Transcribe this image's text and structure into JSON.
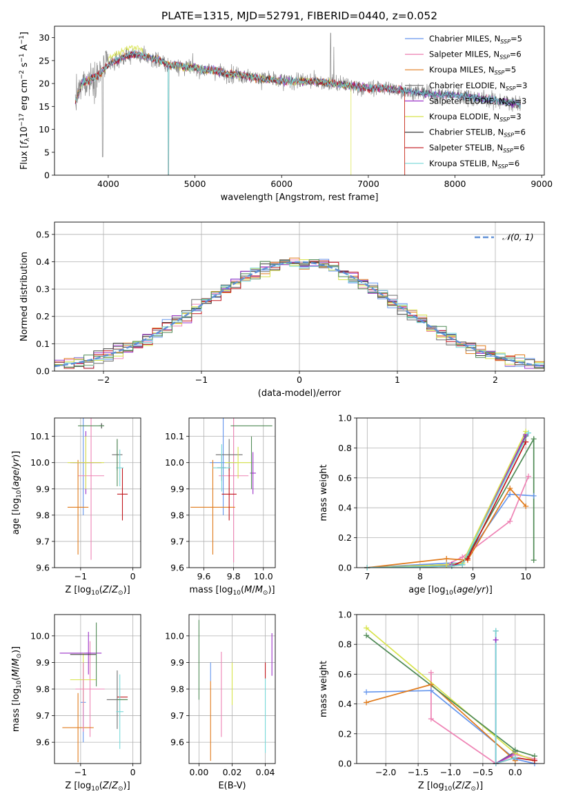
{
  "figure": {
    "title": "PLATE=1315, MJD=52791, FIBERID=0440, z=0.052"
  },
  "colors": {
    "Chabrier MILES": "#6495ed",
    "Salpeter MILES": "#ee82b4",
    "Kroupa MILES": "#e07a1a",
    "Chabrier ELODIE": "#6e6e6e",
    "Salpeter ELODIE": "#9b30c8",
    "Kroupa ELODIE": "#d7e34a",
    "Chabrier STELIB": "#3e3e3e",
    "Salpeter STELIB": "#c0141a",
    "Kroupa STELIB": "#76d8d8",
    "green": "#4f8a55",
    "gaussian": "#5f8fd6"
  },
  "chart_data": [
    {
      "type": "line",
      "id": "spectrum",
      "title": "PLATE=1315, MJD=52791, FIBERID=0440, z=0.052",
      "xlabel": "wavelength [Angstrom, rest frame]",
      "ylabel_parts": [
        "Flux [",
        "f",
        "λ",
        "10",
        "−17",
        " erg cm",
        "−2",
        " s",
        "−1",
        " A",
        "−1",
        "]"
      ],
      "xlim": [
        3380,
        9030
      ],
      "ylim": [
        0,
        32.5
      ],
      "xticks": [
        4000,
        5000,
        6000,
        7000,
        8000,
        9000
      ],
      "yticks": [
        0,
        5,
        10,
        15,
        20,
        25,
        30
      ],
      "legend": "upper right",
      "series": [
        {
          "name": "Chabrier MILES",
          "n_ssp": "5"
        },
        {
          "name": "Salpeter MILES",
          "n_ssp": "6"
        },
        {
          "name": "Kroupa MILES",
          "n_ssp": "5"
        },
        {
          "name": "Chabrier ELODIE",
          "n_ssp": "3"
        },
        {
          "name": "Salpeter ELODIE",
          "n_ssp": "3"
        },
        {
          "name": "Kroupa ELODIE",
          "n_ssp": "3"
        },
        {
          "name": "Chabrier STELIB",
          "n_ssp": "6"
        },
        {
          "name": "Salpeter STELIB",
          "n_ssp": "6"
        },
        {
          "name": "Kroupa STELIB",
          "n_ssp": "6"
        }
      ],
      "continuum": [
        [
          3620,
          16
        ],
        [
          3700,
          20
        ],
        [
          3800,
          21
        ],
        [
          3900,
          22
        ],
        [
          4000,
          24
        ],
        [
          4100,
          25
        ],
        [
          4200,
          26
        ],
        [
          4300,
          26.5
        ],
        [
          4400,
          26
        ],
        [
          4500,
          25.5
        ],
        [
          4600,
          25
        ],
        [
          4700,
          24
        ],
        [
          4800,
          24
        ],
        [
          4900,
          23.5
        ],
        [
          5000,
          23.5
        ],
        [
          5100,
          23
        ],
        [
          5200,
          23
        ],
        [
          5300,
          22.5
        ],
        [
          5400,
          22
        ],
        [
          5500,
          22
        ],
        [
          5600,
          21.5
        ],
        [
          5800,
          21
        ],
        [
          6000,
          20.5
        ],
        [
          6200,
          20.5
        ],
        [
          6400,
          20.5
        ],
        [
          6600,
          20
        ],
        [
          6800,
          19.5
        ],
        [
          7000,
          19
        ],
        [
          7200,
          19
        ],
        [
          7400,
          18.5
        ],
        [
          7600,
          18
        ],
        [
          7800,
          17.5
        ],
        [
          8000,
          17.5
        ],
        [
          8200,
          17
        ],
        [
          8400,
          16.5
        ],
        [
          8600,
          16
        ],
        [
          8760,
          15.5
        ]
      ]
    },
    {
      "type": "step",
      "id": "residuals",
      "xlabel": "(data-model)/error",
      "ylabel": "Normed distribution",
      "xlim": [
        -2.5,
        2.5
      ],
      "ylim": [
        0,
        0.545
      ],
      "xticks": [
        -2,
        -1,
        0,
        1,
        2
      ],
      "yticks": [
        0.0,
        0.1,
        0.2,
        0.3,
        0.4,
        0.5
      ],
      "legend": "upper right",
      "gaussian_label": "𝒩(0, 1)",
      "bin_width": 0.1
    },
    {
      "type": "errorbar",
      "id": "age-vs-Z",
      "xlabel": "Z [log10(Z/Z⊙)]",
      "ylabel": "age [log10(age/yr)]",
      "xlim": [
        -1.5,
        0.15
      ],
      "ylim": [
        9.6,
        10.17
      ],
      "xticks": [
        -1,
        0
      ],
      "yticks": [
        9.6,
        9.7,
        9.8,
        9.9,
        10.0,
        10.1
      ],
      "points": [
        {
          "x": -0.95,
          "xerr": 0.2,
          "y": 10.0,
          "yerr": 0.2,
          "c": "Chabrier MILES"
        },
        {
          "x": -0.8,
          "xerr": 0.25,
          "y": 9.95,
          "yerr": 0.32,
          "c": "Salpeter MILES"
        },
        {
          "x": -1.05,
          "xerr": 0.2,
          "y": 9.83,
          "yerr": 0.18,
          "c": "Kroupa MILES"
        },
        {
          "x": -0.3,
          "xerr": 0.1,
          "y": 10.03,
          "yerr": 0.06,
          "c": "Chabrier ELODIE"
        },
        {
          "x": -0.9,
          "xerr": 0.3,
          "y": 10.0,
          "yerr": 0.12,
          "c": "Salpeter ELODIE"
        },
        {
          "x": -0.9,
          "xerr": 0.35,
          "y": 10.0,
          "yerr": 0.1,
          "c": "Kroupa ELODIE"
        },
        {
          "x": -0.6,
          "xerr": 0.05,
          "y": 10.14,
          "yerr": 0.01,
          "c": "Chabrier STELIB"
        },
        {
          "x": -0.2,
          "xerr": 0.1,
          "y": 9.88,
          "yerr": 0.1,
          "c": "Salpeter STELIB"
        },
        {
          "x": -0.25,
          "xerr": 0.07,
          "y": 9.98,
          "yerr": 0.07,
          "c": "Kroupa STELIB"
        },
        {
          "x": -0.8,
          "xerr": 0.25,
          "y": 10.14,
          "yerr": 0.0,
          "c": "green"
        },
        {
          "x": -0.3,
          "xerr": 0.0,
          "y": 10.0,
          "yerr": 0.09,
          "c": "green"
        }
      ]
    },
    {
      "type": "errorbar",
      "id": "age-vs-mass",
      "xlabel": "mass [log10(M/M⊙)]",
      "ylabel": "",
      "xlim": [
        9.5,
        10.08
      ],
      "ylim": [
        9.6,
        10.17
      ],
      "xticks": [
        9.6,
        9.8,
        10.0
      ],
      "yticks": [
        9.6,
        9.7,
        9.8,
        9.9,
        10.0,
        10.1
      ],
      "points": [
        {
          "x": 9.73,
          "xerr": 0.09,
          "y": 10.0,
          "yerr": 0.2,
          "c": "Chabrier MILES"
        },
        {
          "x": 9.8,
          "xerr": 0.1,
          "y": 9.95,
          "yerr": 0.33,
          "c": "Salpeter MILES"
        },
        {
          "x": 9.66,
          "xerr": 0.15,
          "y": 9.83,
          "yerr": 0.18,
          "c": "Kroupa MILES"
        },
        {
          "x": 9.77,
          "xerr": 0.09,
          "y": 10.03,
          "yerr": 0.06,
          "c": "Chabrier ELODIE"
        },
        {
          "x": 9.93,
          "xerr": 0.02,
          "y": 9.96,
          "yerr": 0.08,
          "c": "Salpeter ELODIE"
        },
        {
          "x": 9.83,
          "xerr": 0.09,
          "y": 10.0,
          "yerr": 0.06,
          "c": "Kroupa ELODIE"
        },
        {
          "x": 9.72,
          "xerr": 0.03,
          "y": 9.98,
          "yerr": 0.05,
          "c": "Chabrier STELIB"
        },
        {
          "x": 9.77,
          "xerr": 0.05,
          "y": 9.88,
          "yerr": 0.1,
          "c": "Salpeter STELIB"
        },
        {
          "x": 9.72,
          "xerr": 0.06,
          "y": 9.98,
          "yerr": 0.09,
          "c": "Kroupa STELIB"
        },
        {
          "x": 9.92,
          "xerr": 0.14,
          "y": 10.14,
          "yerr": 0.0,
          "c": "green"
        },
        {
          "x": 9.92,
          "xerr": 0.0,
          "y": 10.0,
          "yerr": 0.1,
          "c": "green"
        }
      ]
    },
    {
      "type": "line",
      "id": "mass-weight-vs-age",
      "xlabel": "age [log10(age/yr)]",
      "ylabel": "mass weight",
      "xlim": [
        6.8,
        10.35
      ],
      "ylim": [
        0,
        1.0
      ],
      "xticks": [
        7,
        8,
        9,
        10
      ],
      "yticks": [
        0.0,
        0.2,
        0.4,
        0.6,
        0.8,
        1.0
      ],
      "series": [
        {
          "c": "Chabrier MILES",
          "x": [
            7.0,
            8.5,
            8.8,
            9.7,
            10.15
          ],
          "y": [
            0.0,
            0.03,
            0.03,
            0.49,
            0.48
          ]
        },
        {
          "c": "Salpeter MILES",
          "x": [
            7.0,
            8.5,
            8.8,
            9.7,
            10.05
          ],
          "y": [
            0.0,
            0.02,
            0.07,
            0.31,
            0.61
          ]
        },
        {
          "c": "Kroupa MILES",
          "x": [
            7.0,
            8.5,
            8.9,
            9.7,
            10.0
          ],
          "y": [
            0.0,
            0.06,
            0.05,
            0.53,
            0.41
          ]
        },
        {
          "c": "Chabrier ELODIE",
          "x": [
            7.0,
            8.6,
            8.8,
            10.0
          ],
          "y": [
            0.0,
            0.02,
            0.02,
            0.88
          ]
        },
        {
          "c": "Salpeter ELODIE",
          "x": [
            7.0,
            8.6,
            8.8,
            10.0
          ],
          "y": [
            0.0,
            0.02,
            0.02,
            0.89
          ]
        },
        {
          "c": "Kroupa ELODIE",
          "x": [
            7.0,
            8.5,
            8.8,
            10.0
          ],
          "y": [
            0.0,
            0.02,
            0.03,
            0.91
          ]
        },
        {
          "c": "green",
          "x": [
            7.0,
            8.6,
            8.8,
            10.15,
            10.15
          ],
          "y": [
            0.0,
            0.01,
            0.02,
            0.86,
            0.05
          ]
        },
        {
          "c": "Salpeter STELIB",
          "x": [
            7.0,
            8.6,
            8.9,
            10.0
          ],
          "y": [
            0.0,
            0.01,
            0.06,
            0.84
          ]
        },
        {
          "c": "Kroupa STELIB",
          "x": [
            7.0,
            8.6,
            8.8,
            10.05
          ],
          "y": [
            0.0,
            0.01,
            0.02,
            0.9
          ]
        }
      ]
    },
    {
      "type": "errorbar",
      "id": "mass-vs-Z",
      "xlabel": "Z [log10(Z/Z⊙)]",
      "ylabel": "mass [log10(M/M⊙)]",
      "xlim": [
        -1.5,
        0.15
      ],
      "ylim": [
        9.52,
        10.08
      ],
      "xticks": [
        -1,
        0
      ],
      "yticks": [
        9.6,
        9.7,
        9.8,
        9.9,
        10.0
      ],
      "points": [
        {
          "x": -0.95,
          "xerr": 0.05,
          "y": 9.75,
          "yerr": 0.15,
          "c": "Chabrier MILES"
        },
        {
          "x": -0.82,
          "xerr": 0.28,
          "y": 9.8,
          "yerr": 0.18,
          "c": "Salpeter MILES"
        },
        {
          "x": -1.05,
          "xerr": 0.3,
          "y": 9.655,
          "yerr": 0.13,
          "c": "Kroupa MILES"
        },
        {
          "x": -0.3,
          "xerr": 0.2,
          "y": 9.76,
          "yerr": 0.11,
          "c": "Chabrier ELODIE"
        },
        {
          "x": -1.0,
          "xerr": 0.4,
          "y": 9.935,
          "yerr": 0.0,
          "c": "Salpeter ELODIE"
        },
        {
          "x": -0.85,
          "xerr": 0.05,
          "y": 9.935,
          "yerr": 0.08,
          "c": "Salpeter ELODIE"
        },
        {
          "x": -0.95,
          "xerr": 0.25,
          "y": 9.835,
          "yerr": 0.1,
          "c": "Kroupa ELODIE"
        },
        {
          "x": -0.95,
          "xerr": 0.25,
          "y": 9.93,
          "yerr": 0.0,
          "c": "Chabrier STELIB"
        },
        {
          "x": -0.2,
          "xerr": 0.1,
          "y": 9.77,
          "yerr": 0.0,
          "c": "Salpeter STELIB"
        },
        {
          "x": -0.25,
          "xerr": 0.07,
          "y": 9.715,
          "yerr": 0.14,
          "c": "Kroupa STELIB"
        },
        {
          "x": -0.7,
          "xerr": 0.0,
          "y": 9.93,
          "yerr": 0.12,
          "c": "green"
        },
        {
          "x": -0.2,
          "xerr": 0.1,
          "y": 9.76,
          "yerr": 0.0,
          "c": "green"
        },
        {
          "x": -0.95,
          "xerr": 0.0,
          "y": 9.77,
          "yerr": 0.13,
          "c": "Salpeter MILES"
        }
      ]
    },
    {
      "type": "errorbar",
      "id": "mass-vs-EBV",
      "xlabel": "E(B-V)",
      "ylabel": "",
      "xlim": [
        -0.006,
        0.046
      ],
      "ylim": [
        9.52,
        10.08
      ],
      "xticks": [
        0.0,
        0.02,
        0.04
      ],
      "yticks": [
        9.6,
        9.7,
        9.8,
        9.9,
        10.0
      ],
      "points": [
        {
          "x": 0.0,
          "yerr_lo": 9.76,
          "yerr_hi": 10.06,
          "c": "green"
        },
        {
          "x": 0.007,
          "yerr_lo": 9.53,
          "yerr_hi": 9.83,
          "c": "Kroupa MILES"
        },
        {
          "x": 0.007,
          "yerr_lo": 9.83,
          "yerr_hi": 9.9,
          "c": "Chabrier MILES"
        },
        {
          "x": 0.0135,
          "yerr_lo": 9.62,
          "yerr_hi": 9.94,
          "c": "Salpeter MILES"
        },
        {
          "x": 0.02,
          "yerr_lo": 9.74,
          "yerr_hi": 9.9,
          "c": "Kroupa ELODIE"
        },
        {
          "x": 0.04,
          "yerr_lo": 9.56,
          "yerr_hi": 9.84,
          "c": "Kroupa STELIB"
        },
        {
          "x": 0.04,
          "yerr_lo": 9.84,
          "yerr_hi": 9.9,
          "c": "Salpeter STELIB"
        },
        {
          "x": 0.044,
          "yerr_lo": 9.85,
          "yerr_hi": 10.01,
          "c": "Salpeter ELODIE"
        }
      ]
    },
    {
      "type": "line",
      "id": "mass-weight-vs-Z",
      "xlabel": "Z [log10(Z/Z⊙)]",
      "ylabel": "mass weight",
      "xlim": [
        -2.45,
        0.45
      ],
      "ylim": [
        0,
        1.0
      ],
      "xticks": [
        -2.0,
        -1.5,
        -1.0,
        -0.5,
        0.0
      ],
      "yticks": [
        0.0,
        0.2,
        0.4,
        0.6,
        0.8,
        1.0
      ],
      "series": [
        {
          "c": "Chabrier MILES",
          "x": [
            -2.3,
            -1.3,
            0.0,
            0.3
          ],
          "y": [
            0.48,
            0.49,
            0.03,
            0.0
          ]
        },
        {
          "c": "Salpeter MILES",
          "x": [
            -1.3,
            -1.3,
            -0.3,
            0.0,
            0.3
          ],
          "y": [
            0.61,
            0.3,
            0.0,
            0.06,
            0.03
          ]
        },
        {
          "c": "Kroupa MILES",
          "x": [
            -2.3,
            -1.3,
            0.0
          ],
          "y": [
            0.41,
            0.53,
            0.02
          ]
        },
        {
          "c": "Chabrier ELODIE",
          "x": [
            -0.3,
            -0.3,
            0.0
          ],
          "y": [
            0.89,
            0.0,
            0.08
          ]
        },
        {
          "c": "Salpeter ELODIE",
          "x": [
            -0.3,
            -0.3,
            0.0
          ],
          "y": [
            0.83,
            0.0,
            0.07
          ]
        },
        {
          "c": "Kroupa ELODIE",
          "x": [
            -2.3,
            0.0,
            0.3
          ],
          "y": [
            0.91,
            0.07,
            0.02
          ]
        },
        {
          "c": "green",
          "x": [
            -2.3,
            0.0,
            0.3
          ],
          "y": [
            0.86,
            0.09,
            0.05
          ]
        },
        {
          "c": "Salpeter STELIB",
          "x": [
            -0.3,
            0.0,
            0.3
          ],
          "y": [
            0.0,
            0.04,
            0.02
          ]
        },
        {
          "c": "Kroupa STELIB",
          "x": [
            -0.3,
            -0.3,
            0.0
          ],
          "y": [
            0.89,
            0.0,
            0.04
          ]
        }
      ]
    }
  ]
}
